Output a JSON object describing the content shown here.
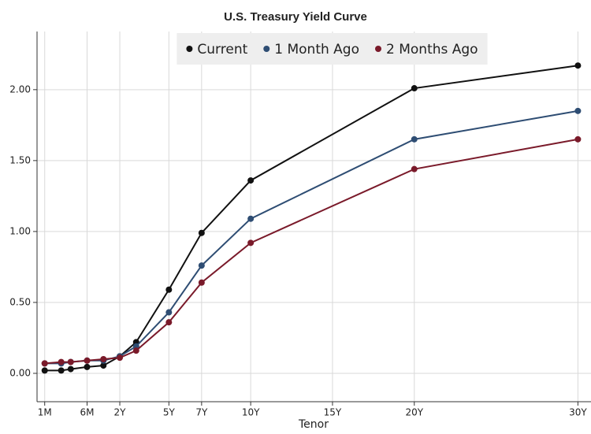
{
  "chart_data": {
    "type": "line",
    "title": "U.S. Treasury Yield Curve",
    "x_label": "Tenor",
    "x": [
      0.083,
      0.167,
      0.25,
      0.5,
      1,
      2,
      3,
      5,
      7,
      10,
      20,
      30
    ],
    "series": [
      {
        "name": "Current",
        "color": "#111111",
        "values": [
          0.02,
          0.02,
          0.03,
          0.045,
          0.055,
          0.12,
          0.22,
          0.59,
          0.99,
          1.36,
          2.01,
          2.17
        ]
      },
      {
        "name": "1 Month Ago",
        "color": "#2e4d73",
        "values": [
          0.07,
          0.07,
          0.08,
          0.09,
          0.09,
          0.12,
          0.19,
          0.43,
          0.76,
          1.09,
          1.65,
          1.85
        ]
      },
      {
        "name": "2 Months Ago",
        "color": "#7a1a2a",
        "values": [
          0.07,
          0.08,
          0.08,
          0.09,
          0.1,
          0.11,
          0.16,
          0.36,
          0.64,
          0.92,
          1.44,
          1.65
        ]
      }
    ],
    "xlim": [
      0.06,
      30.8
    ],
    "xticks": [
      {
        "value": 0.083,
        "label": "1M"
      },
      {
        "value": 0.5,
        "label": "6M"
      },
      {
        "value": 2,
        "label": "2Y"
      },
      {
        "value": 5,
        "label": "5Y"
      },
      {
        "value": 7,
        "label": "7Y"
      },
      {
        "value": 10,
        "label": "10Y"
      },
      {
        "value": 15,
        "label": "15Y"
      },
      {
        "value": 20,
        "label": "20Y"
      },
      {
        "value": 30,
        "label": "30Y"
      }
    ],
    "ylim": [
      -0.2,
      2.41
    ],
    "yticks": [
      {
        "value": 0,
        "label": "0.00"
      },
      {
        "value": 0.5,
        "label": "0.50"
      },
      {
        "value": 1,
        "label": "1.00"
      },
      {
        "value": 1.5,
        "label": "1.50"
      },
      {
        "value": 2,
        "label": "2.00"
      }
    ],
    "grid": true,
    "legend": "top"
  }
}
